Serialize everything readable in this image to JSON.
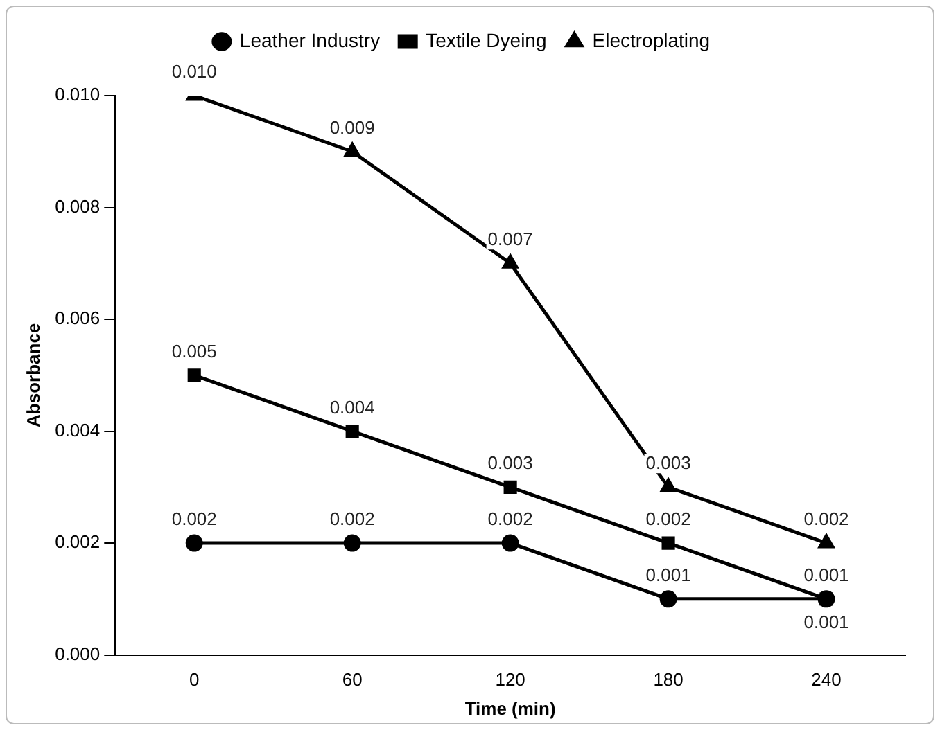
{
  "chart_data": {
    "type": "line",
    "xlabel": "Time (min)",
    "ylabel": "Absorbance",
    "categories": [
      "0",
      "60",
      "120",
      "180",
      "240"
    ],
    "ylim": [
      0,
      0.01
    ],
    "yticks": [
      {
        "value": 0,
        "label": "0.000"
      },
      {
        "value": 0.002,
        "label": "0.002"
      },
      {
        "value": 0.004,
        "label": "0.004"
      },
      {
        "value": 0.006,
        "label": "0.006"
      },
      {
        "value": 0.008,
        "label": "0.008"
      },
      {
        "value": 0.01,
        "label": "0.010"
      }
    ],
    "grid": false,
    "legend": "top",
    "line_style": "solid",
    "series": [
      {
        "name": "Leather Industry",
        "color": "#000000",
        "marker": "circle",
        "values": [
          0.002,
          0.002,
          0.002,
          0.001,
          0.001
        ],
        "value_labels": [
          "0.002",
          "0.002",
          "0.002",
          "0.001",
          "0.001"
        ]
      },
      {
        "name": "Textile Dyeing",
        "color": "#000000",
        "marker": "square",
        "values": [
          0.005,
          0.004,
          0.003,
          0.002,
          0.001
        ],
        "value_labels": [
          "0.005",
          "0.004",
          "0.003",
          "0.002",
          "0.001"
        ]
      },
      {
        "name": "Electroplating",
        "color": "#000000",
        "marker": "triangle",
        "values": [
          0.01,
          0.009,
          0.007,
          0.003,
          0.002
        ],
        "value_labels": [
          "0.010",
          "0.009",
          "0.007",
          "0.003",
          "0.002"
        ]
      }
    ]
  }
}
